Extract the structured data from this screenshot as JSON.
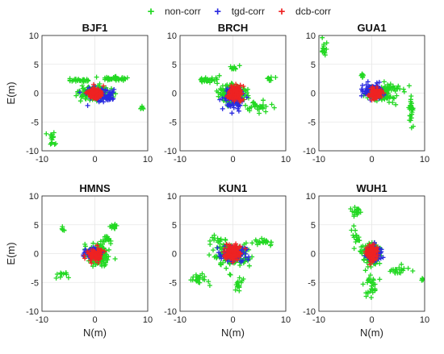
{
  "chart_data": {
    "type": "scatter",
    "legend": {
      "placement": "top",
      "entries": [
        "non-corr",
        "tgd-corr",
        "dcb-corr"
      ]
    },
    "colors": {
      "non-corr": "#22d822",
      "tgd-corr": "#2a2ae0",
      "dcb-corr": "#ee2222"
    },
    "marker": "plus",
    "shared": {
      "xlabel": "N(m)",
      "ylabel": "E(m)",
      "xlim": [
        -10,
        10
      ],
      "ylim": [
        -10,
        10
      ],
      "xticks": [
        "-10",
        "0",
        "10"
      ],
      "yticks": [
        "10",
        "5",
        "0",
        "-5",
        "-10"
      ],
      "grid": true
    },
    "panels": [
      {
        "title": "BJF1",
        "series": [
          {
            "name": "non-corr",
            "clusters": [
              {
                "cx": 0,
                "cy": 0,
                "sx": 3.0,
                "sy": 1.3,
                "n": 150
              },
              {
                "cx": 4,
                "cy": 2.5,
                "sx": 2.5,
                "sy": 0.3,
                "n": 40
              },
              {
                "cx": -3,
                "cy": 2.2,
                "sx": 2.0,
                "sy": 0.3,
                "n": 25
              },
              {
                "cx": -8,
                "cy": -8,
                "sx": 0.6,
                "sy": 1.3,
                "n": 16
              },
              {
                "cx": 9,
                "cy": -2.6,
                "sx": 0.5,
                "sy": 0.4,
                "n": 5
              }
            ]
          },
          {
            "name": "tgd-corr",
            "clusters": [
              {
                "cx": 1,
                "cy": -0.5,
                "sx": 2.4,
                "sy": 1.1,
                "n": 80
              }
            ]
          },
          {
            "name": "dcb-corr",
            "clusters": [
              {
                "cx": 0,
                "cy": 0,
                "sx": 1.3,
                "sy": 0.9,
                "n": 110
              }
            ]
          }
        ]
      },
      {
        "title": "BRCH",
        "series": [
          {
            "name": "non-corr",
            "clusters": [
              {
                "cx": 0,
                "cy": 0,
                "sx": 2.8,
                "sy": 1.8,
                "n": 150
              },
              {
                "cx": -5,
                "cy": 2.3,
                "sx": 2.2,
                "sy": 0.5,
                "n": 30
              },
              {
                "cx": 5,
                "cy": -2.5,
                "sx": 2.0,
                "sy": 0.8,
                "n": 30
              },
              {
                "cx": 0,
                "cy": 4.5,
                "sx": 0.8,
                "sy": 0.6,
                "n": 10
              },
              {
                "cx": 7,
                "cy": 2.5,
                "sx": 1.0,
                "sy": 0.3,
                "n": 8
              }
            ]
          },
          {
            "name": "tgd-corr",
            "clusters": [
              {
                "cx": 0,
                "cy": -1,
                "sx": 1.7,
                "sy": 1.7,
                "n": 90
              }
            ]
          },
          {
            "name": "dcb-corr",
            "clusters": [
              {
                "cx": 0.5,
                "cy": 0,
                "sx": 1.2,
                "sy": 1.4,
                "n": 120
              }
            ]
          }
        ]
      },
      {
        "title": "GUA1",
        "series": [
          {
            "name": "non-corr",
            "clusters": [
              {
                "cx": 2,
                "cy": 0,
                "sx": 2.5,
                "sy": 1.4,
                "n": 110
              },
              {
                "cx": -9,
                "cy": 8,
                "sx": 0.5,
                "sy": 1.4,
                "n": 16
              },
              {
                "cx": 7.5,
                "cy": -3,
                "sx": 0.4,
                "sy": 2.8,
                "n": 30
              },
              {
                "cx": -1.8,
                "cy": 3.2,
                "sx": 0.5,
                "sy": 0.5,
                "n": 8
              },
              {
                "cx": 4,
                "cy": 1,
                "sx": 2.0,
                "sy": 0.6,
                "n": 20
              }
            ]
          },
          {
            "name": "tgd-corr",
            "clusters": [
              {
                "cx": 0,
                "cy": 0.5,
                "sx": 1.9,
                "sy": 1.3,
                "n": 80
              }
            ]
          },
          {
            "name": "dcb-corr",
            "clusters": [
              {
                "cx": 0.7,
                "cy": 0,
                "sx": 1.1,
                "sy": 1.0,
                "n": 100
              }
            ]
          }
        ]
      },
      {
        "title": "HMNS",
        "series": [
          {
            "name": "non-corr",
            "clusters": [
              {
                "cx": 0.5,
                "cy": 0,
                "sx": 2.0,
                "sy": 2.0,
                "n": 140
              },
              {
                "cx": 3.5,
                "cy": 4.8,
                "sx": 0.6,
                "sy": 0.6,
                "n": 14
              },
              {
                "cx": -6,
                "cy": 4.2,
                "sx": 0.4,
                "sy": 0.4,
                "n": 6
              },
              {
                "cx": -6,
                "cy": -3.5,
                "sx": 1.3,
                "sy": 0.8,
                "n": 12
              },
              {
                "cx": 2.5,
                "cy": 2.5,
                "sx": 0.8,
                "sy": 0.8,
                "n": 15
              }
            ]
          },
          {
            "name": "tgd-corr",
            "clusters": [
              {
                "cx": -0.5,
                "cy": 0,
                "sx": 1.6,
                "sy": 1.0,
                "n": 70
              }
            ]
          },
          {
            "name": "dcb-corr",
            "clusters": [
              {
                "cx": 0,
                "cy": -0.2,
                "sx": 1.3,
                "sy": 1.1,
                "n": 110
              }
            ]
          }
        ]
      },
      {
        "title": "KUN1",
        "series": [
          {
            "name": "non-corr",
            "clusters": [
              {
                "cx": 0,
                "cy": 0,
                "sx": 3.2,
                "sy": 1.8,
                "n": 170
              },
              {
                "cx": -6,
                "cy": -4.5,
                "sx": 1.6,
                "sy": 1.0,
                "n": 22
              },
              {
                "cx": 6,
                "cy": 2,
                "sx": 1.6,
                "sy": 0.5,
                "n": 22
              },
              {
                "cx": 1,
                "cy": -5.5,
                "sx": 0.8,
                "sy": 1.2,
                "n": 14
              },
              {
                "cx": -3,
                "cy": 2.5,
                "sx": 1.5,
                "sy": 0.6,
                "n": 14
              }
            ]
          },
          {
            "name": "tgd-corr",
            "clusters": [
              {
                "cx": 0,
                "cy": 0,
                "sx": 2.4,
                "sy": 1.3,
                "n": 90
              }
            ]
          },
          {
            "name": "dcb-corr",
            "clusters": [
              {
                "cx": 0,
                "cy": 0.2,
                "sx": 1.4,
                "sy": 1.3,
                "n": 120
              }
            ]
          }
        ]
      },
      {
        "title": "WUH1",
        "series": [
          {
            "name": "non-corr",
            "clusters": [
              {
                "cx": 0,
                "cy": 0,
                "sx": 1.8,
                "sy": 1.8,
                "n": 130
              },
              {
                "cx": -3,
                "cy": 7,
                "sx": 1.0,
                "sy": 1.0,
                "n": 18
              },
              {
                "cx": 0,
                "cy": -5.5,
                "sx": 1.3,
                "sy": 2.2,
                "n": 28
              },
              {
                "cx": 5,
                "cy": -3,
                "sx": 1.8,
                "sy": 0.8,
                "n": 20
              },
              {
                "cx": -3,
                "cy": 3,
                "sx": 0.9,
                "sy": 1.8,
                "n": 16
              },
              {
                "cx": 9.5,
                "cy": -4.5,
                "sx": 0.4,
                "sy": 0.3,
                "n": 5
              }
            ]
          },
          {
            "name": "tgd-corr",
            "clusters": [
              {
                "cx": 0.5,
                "cy": 0,
                "sx": 1.5,
                "sy": 1.3,
                "n": 70
              }
            ]
          },
          {
            "name": "dcb-corr",
            "clusters": [
              {
                "cx": 0,
                "cy": 0,
                "sx": 1.1,
                "sy": 1.2,
                "n": 110
              }
            ]
          }
        ]
      }
    ]
  }
}
